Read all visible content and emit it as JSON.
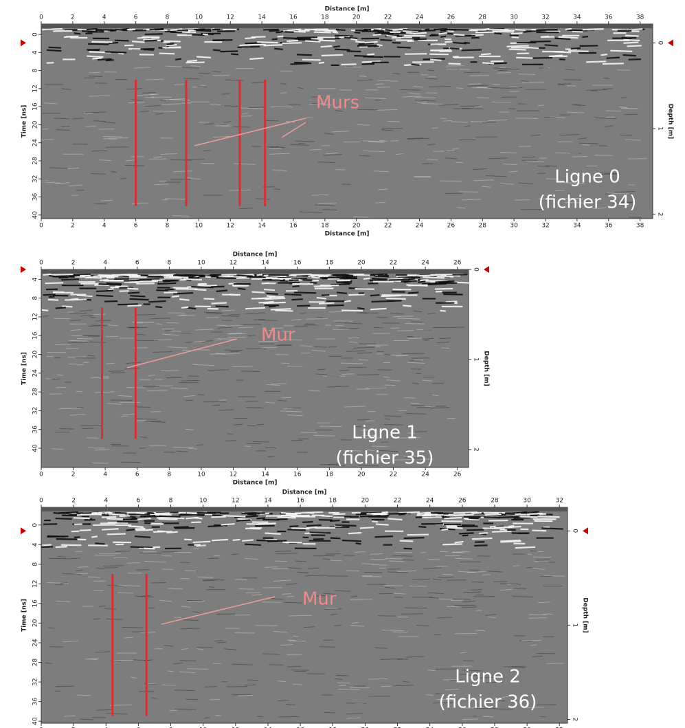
{
  "chart_data": [
    {
      "type": "radargram",
      "xlabel": "Distance [m]",
      "ylabel": "Time [ns]",
      "y2label": "Depth [m]",
      "xlim": [
        0,
        38.8
      ],
      "ylim": [
        -2.3,
        40.8
      ],
      "y2lim": [
        -0.22,
        2.05
      ],
      "xticks": [
        0,
        2,
        4,
        6,
        8,
        10,
        12,
        14,
        16,
        18,
        20,
        22,
        24,
        26,
        28,
        30,
        32,
        34,
        36,
        38
      ],
      "yticks": [
        0,
        4,
        8,
        12,
        16,
        20,
        24,
        28,
        32,
        36,
        40
      ],
      "y2ticks": [
        0,
        1,
        2
      ],
      "annotation": "Murs",
      "line_label": "Ligne 0",
      "file_label": "(fichier 34)",
      "wall_x": [
        6,
        9.2,
        12.6,
        14.2
      ],
      "wall_ylim": [
        10,
        38
      ],
      "wall_color": "#d83030"
    },
    {
      "type": "radargram",
      "xlabel": "Distance [m]",
      "ylabel": "Time [ns]",
      "y2label": "Depth [m]",
      "xlim": [
        0,
        26.7
      ],
      "ylim": [
        1.9,
        44.1
      ],
      "y2lim": [
        0,
        2.2
      ],
      "xticks": [
        0,
        2,
        4,
        6,
        8,
        10,
        12,
        14,
        16,
        18,
        20,
        22,
        24,
        26
      ],
      "yticks": [
        4,
        8,
        12,
        16,
        20,
        24,
        28,
        32,
        36,
        40
      ],
      "y2ticks": [
        0,
        1,
        2
      ],
      "annotation": "Mur",
      "line_label": "Ligne 1",
      "file_label": "(fichier 35)",
      "wall_x": [
        3.8,
        5.9
      ],
      "wall_ylim": [
        10,
        38
      ],
      "wall_color": "#d83030"
    },
    {
      "type": "radargram",
      "xlabel": "Distance [m]",
      "ylabel": "Time [ns]",
      "y2label": "Depth [m]",
      "xlim": [
        0,
        32.5
      ],
      "ylim": [
        -3.6,
        40.4
      ],
      "y2lim": [
        -0.25,
        2.04
      ],
      "xticks": [
        0,
        2,
        4,
        6,
        8,
        10,
        12,
        14,
        16,
        18,
        20,
        22,
        24,
        26,
        28,
        30,
        32
      ],
      "yticks": [
        0,
        4,
        8,
        12,
        16,
        20,
        24,
        28,
        32,
        36,
        40
      ],
      "y2ticks": [
        0,
        1,
        2
      ],
      "annotation": "Mur",
      "line_label": "Ligne 2",
      "file_label": "(fichier 36)",
      "wall_x": [
        4.4,
        6.5
      ],
      "wall_ylim": [
        10,
        39
      ],
      "wall_color": "#d83030"
    }
  ]
}
